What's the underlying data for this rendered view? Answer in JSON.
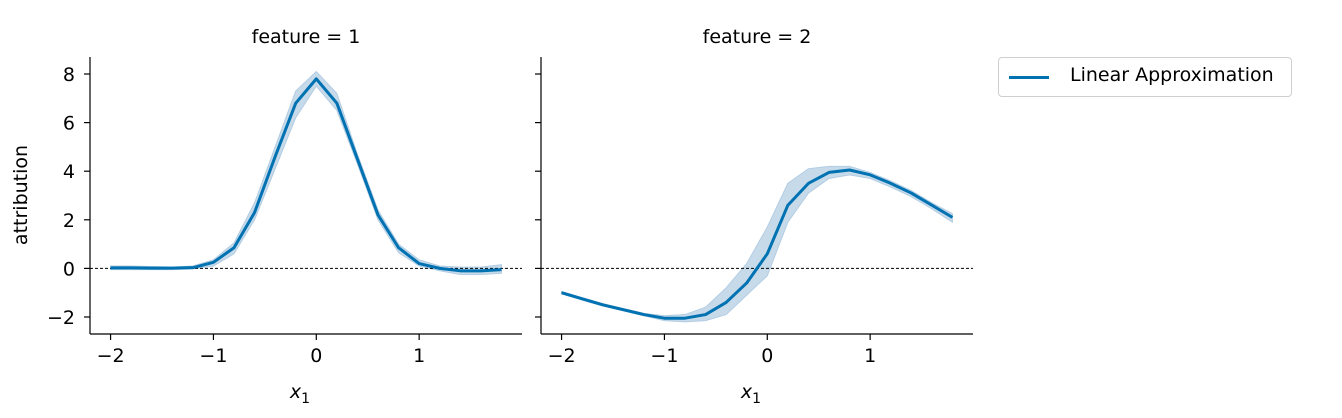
{
  "chart_data": {
    "type": "line",
    "ylabel": "attribution",
    "legend": {
      "label": "Linear Approximation",
      "placement": "right"
    },
    "series_color": "#0072b2",
    "band_color": "#b3cde3",
    "xlim": [
      -2.2,
      2.0
    ],
    "ylim": [
      -2.7,
      8.7
    ],
    "xticks": [
      -2,
      -1,
      0,
      1
    ],
    "xtick_labels": [
      "−2",
      "−1",
      "0",
      "1"
    ],
    "yticks": [
      -2,
      0,
      2,
      4,
      6,
      8
    ],
    "ytick_labels": [
      "−2",
      "0",
      "2",
      "4",
      "6",
      "8"
    ],
    "baseline": 0,
    "panels": [
      {
        "title": "feature = 1",
        "xlabel_main": "x",
        "xlabel_sub": "1",
        "x": [
          -2.0,
          -1.8,
          -1.6,
          -1.4,
          -1.2,
          -1.0,
          -0.8,
          -0.6,
          -0.4,
          -0.2,
          0.0,
          0.2,
          0.4,
          0.6,
          0.8,
          1.0,
          1.2,
          1.4,
          1.6,
          1.8
        ],
        "y": [
          0.02,
          0.02,
          0.01,
          0.01,
          0.03,
          0.25,
          0.85,
          2.3,
          4.6,
          6.8,
          7.8,
          6.8,
          4.5,
          2.2,
          0.85,
          0.2,
          0.0,
          -0.1,
          -0.1,
          -0.05
        ],
        "y_low": [
          -0.05,
          -0.05,
          -0.05,
          -0.05,
          -0.02,
          0.1,
          0.6,
          2.0,
          4.1,
          6.2,
          7.5,
          6.5,
          4.3,
          2.0,
          0.65,
          0.1,
          -0.1,
          -0.25,
          -0.25,
          -0.2
        ],
        "y_high": [
          0.1,
          0.1,
          0.08,
          0.06,
          0.1,
          0.35,
          1.05,
          2.7,
          5.0,
          7.3,
          8.1,
          7.2,
          4.7,
          2.4,
          1.0,
          0.35,
          0.1,
          0.05,
          0.05,
          0.15
        ]
      },
      {
        "title": "feature = 2",
        "xlabel_main": "x",
        "xlabel_sub": "1",
        "x": [
          -2.0,
          -1.8,
          -1.6,
          -1.4,
          -1.2,
          -1.0,
          -0.8,
          -0.6,
          -0.4,
          -0.2,
          0.0,
          0.2,
          0.4,
          0.6,
          0.8,
          1.0,
          1.2,
          1.4,
          1.6,
          1.8
        ],
        "y": [
          -1.0,
          -1.25,
          -1.5,
          -1.7,
          -1.9,
          -2.05,
          -2.05,
          -1.9,
          -1.4,
          -0.6,
          0.6,
          2.6,
          3.5,
          3.95,
          4.05,
          3.85,
          3.5,
          3.1,
          2.6,
          2.1
        ],
        "y_low": [
          -1.05,
          -1.3,
          -1.55,
          -1.75,
          -1.95,
          -2.15,
          -2.2,
          -2.15,
          -1.9,
          -1.1,
          -0.3,
          1.9,
          3.1,
          3.7,
          3.85,
          3.7,
          3.35,
          2.95,
          2.45,
          1.9
        ],
        "y_high": [
          -0.95,
          -1.2,
          -1.45,
          -1.65,
          -1.85,
          -1.95,
          -1.9,
          -1.6,
          -0.8,
          0.2,
          1.7,
          3.5,
          4.1,
          4.2,
          4.2,
          3.95,
          3.6,
          3.2,
          2.7,
          2.25
        ]
      }
    ]
  }
}
